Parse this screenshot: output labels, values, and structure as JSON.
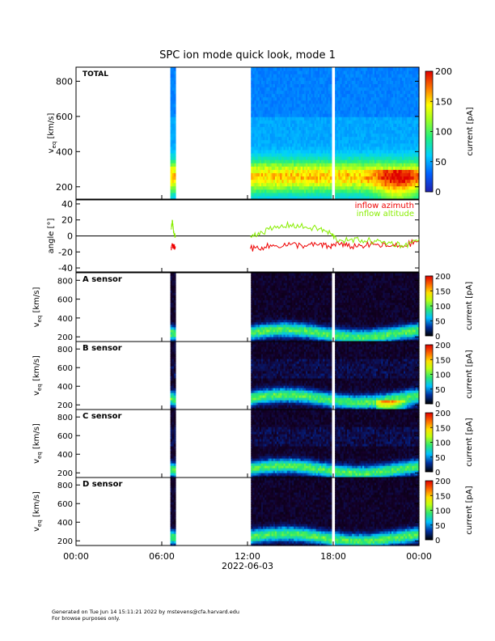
{
  "title": "SPC ion mode quick look, mode 1",
  "xaxis": {
    "tick_labels": [
      "00:00",
      "06:00",
      "12:00",
      "18:00",
      "00:00"
    ],
    "tick_hours": [
      0,
      6,
      12,
      18,
      24
    ],
    "date_label": "2022-06-03"
  },
  "colorbar": {
    "label": "current [pA]",
    "large_ticks": [
      0,
      50,
      100,
      150,
      200
    ],
    "small_ticks": [
      0,
      50,
      100,
      150,
      200
    ]
  },
  "footer": {
    "line1": "Generated on Tue Jun 14 15:11:21 2022 by mstevens@cfa.harvard.edu",
    "line2": "For browse purposes only."
  },
  "chart_data": [
    {
      "type": "heatmap",
      "panel_label": "TOTAL",
      "ylabel_main": "v",
      "ylabel_sub": "eq",
      "ylabel_unit": "[km/s]",
      "yticks": [
        200,
        400,
        600,
        800
      ],
      "ylim": [
        130,
        880
      ],
      "zlim": [
        0,
        200
      ],
      "data_segments_hours": [
        [
          6.6,
          7.0
        ],
        [
          12.2,
          17.9
        ],
        [
          18.15,
          24.0
        ]
      ],
      "colorscale": "rainbow"
    },
    {
      "type": "line",
      "ylabel": "angle [°]",
      "yticks": [
        -40,
        -20,
        0,
        20,
        40
      ],
      "ylim": [
        -45,
        45
      ],
      "zero_line": true,
      "series": [
        {
          "name": "inflow azimuth",
          "color": "#ee0000",
          "x": [
            6.65,
            6.75,
            6.85,
            6.95,
            12.2,
            13,
            14,
            15,
            16,
            17,
            17.8,
            18.2,
            19,
            20,
            21,
            22,
            23,
            24
          ],
          "y": [
            -15,
            -12,
            -14,
            -13,
            -16,
            -14,
            -12,
            -11,
            -12,
            -11,
            -14,
            -9,
            -13,
            -12,
            -11,
            -13,
            -12,
            -6
          ]
        },
        {
          "name": "inflow altitude",
          "color": "#88ee00",
          "x": [
            6.65,
            6.75,
            6.85,
            6.95,
            12.2,
            13,
            14,
            15,
            16,
            17,
            17.8,
            18.2,
            19,
            20,
            21,
            22,
            23,
            24
          ],
          "y": [
            8,
            18,
            3,
            -2,
            0,
            5,
            10,
            14,
            11,
            9,
            3,
            -4,
            -6,
            -5,
            -7,
            -9,
            -12,
            -4
          ]
        }
      ]
    },
    {
      "type": "heatmap",
      "panel_label": "A sensor",
      "ylabel_main": "v",
      "ylabel_sub": "eq",
      "ylabel_unit": "[km/s]",
      "yticks": [
        200,
        400,
        600,
        800
      ],
      "ylim": [
        150,
        880
      ],
      "zlim": [
        0,
        200
      ],
      "colorscale": "blackbody"
    },
    {
      "type": "heatmap",
      "panel_label": "B sensor",
      "ylabel_main": "v",
      "ylabel_sub": "eq",
      "ylabel_unit": "[km/s]",
      "yticks": [
        200,
        400,
        600,
        800
      ],
      "ylim": [
        150,
        880
      ],
      "zlim": [
        0,
        200
      ],
      "colorscale": "blackbody"
    },
    {
      "type": "heatmap",
      "panel_label": "C sensor",
      "ylabel_main": "v",
      "ylabel_sub": "eq",
      "ylabel_unit": "[km/s]",
      "yticks": [
        200,
        400,
        600,
        800
      ],
      "ylim": [
        150,
        880
      ],
      "zlim": [
        0,
        200
      ],
      "colorscale": "blackbody"
    },
    {
      "type": "heatmap",
      "panel_label": "D sensor",
      "ylabel_main": "v",
      "ylabel_sub": "eq",
      "ylabel_unit": "[km/s]",
      "yticks": [
        200,
        400,
        600,
        800
      ],
      "ylim": [
        150,
        880
      ],
      "zlim": [
        0,
        200
      ],
      "colorscale": "blackbody"
    }
  ]
}
